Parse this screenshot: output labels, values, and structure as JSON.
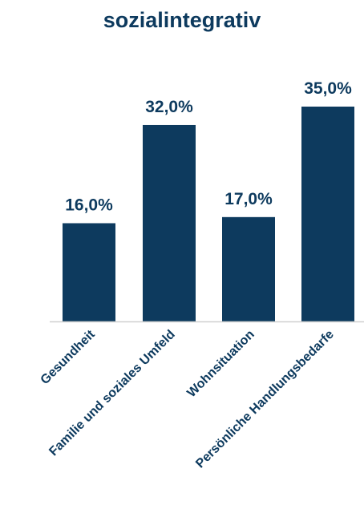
{
  "chart_data": {
    "type": "bar",
    "title": "sozialintegrativ",
    "categories": [
      "Gesundheit",
      "Familie und soziales Umfeld",
      "Wohnsituation",
      "Persönliche Handlungsbedarfe"
    ],
    "values": [
      16.0,
      32.0,
      17.0,
      35.0
    ],
    "value_labels": [
      "16,0%",
      "32,0%",
      "17,0%",
      "35,0%"
    ],
    "bar_color": "#0d3a5e",
    "axis_color": "#d0d0d0",
    "ylim": [
      0,
      35
    ],
    "grid": false,
    "legend": "none"
  }
}
